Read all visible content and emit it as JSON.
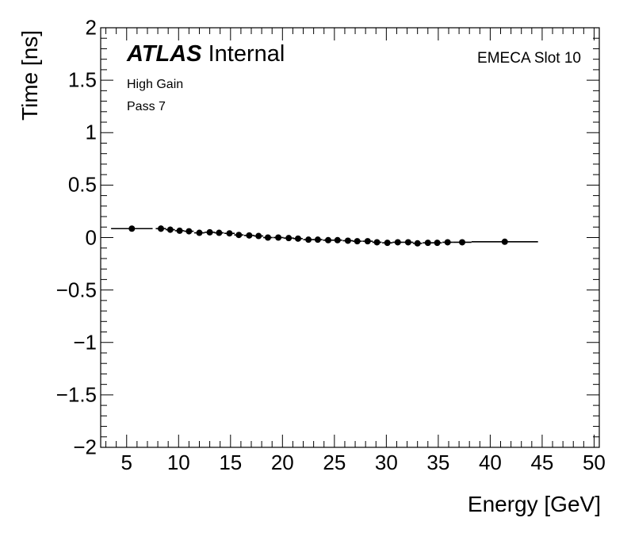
{
  "chart_data": {
    "type": "scatter",
    "xlabel": "Energy [GeV]",
    "ylabel": "Time [ns]",
    "xlim": [
      2.5,
      50.5
    ],
    "ylim": [
      -2,
      2
    ],
    "x_ticks": [
      5,
      10,
      15,
      20,
      25,
      30,
      35,
      40,
      45,
      50
    ],
    "x_tick_labels": [
      "5",
      "10",
      "15",
      "20",
      "25",
      "30",
      "35",
      "40",
      "45",
      "50"
    ],
    "y_ticks": [
      -2,
      -1.5,
      -1,
      -0.5,
      0,
      0.5,
      1,
      1.5,
      2
    ],
    "y_tick_labels": [
      "−2",
      "−1.5",
      "−1",
      "−0.5",
      "0",
      "0.5",
      "1",
      "1.5",
      "2"
    ],
    "grid": false,
    "annotations": {
      "atlas": "ATLAS",
      "internal": "Internal",
      "slot": "EMECA Slot 10",
      "gain": "High Gain",
      "pass": "Pass 7"
    },
    "series": [
      {
        "x": [
          5.5,
          8.3,
          9.2,
          10.1,
          11.0,
          12.0,
          13.0,
          13.9,
          14.9,
          15.8,
          16.8,
          17.7,
          18.6,
          19.6,
          20.6,
          21.5,
          22.5,
          23.4,
          24.4,
          25.3,
          26.3,
          27.2,
          28.2,
          29.1,
          30.1,
          31.1,
          32.1,
          33.0,
          34.0,
          34.9,
          35.9,
          37.3,
          41.4
        ],
        "y": [
          0.085,
          0.085,
          0.075,
          0.065,
          0.06,
          0.045,
          0.05,
          0.045,
          0.04,
          0.025,
          0.02,
          0.015,
          0.0,
          0.0,
          -0.005,
          -0.01,
          -0.02,
          -0.02,
          -0.025,
          -0.025,
          -0.03,
          -0.035,
          -0.035,
          -0.045,
          -0.05,
          -0.045,
          -0.045,
          -0.055,
          -0.05,
          -0.05,
          -0.045,
          -0.045,
          -0.04
        ],
        "yerr": [
          0.02,
          0.03,
          0.03,
          0.025,
          0.025,
          0.02,
          0.02,
          0.02,
          0.02,
          0.015,
          0.015,
          0.015,
          0.012,
          0.012,
          0.012,
          0.012,
          0.012,
          0.012,
          0.012,
          0.012,
          0.012,
          0.012,
          0.012,
          0.012,
          0.012,
          0.012,
          0.012,
          0.012,
          0.012,
          0.012,
          0.012,
          0.012,
          0.012
        ],
        "xerr": [
          2.0,
          0.5,
          0.45,
          0.45,
          0.45,
          0.5,
          0.5,
          0.45,
          0.5,
          0.45,
          0.5,
          0.45,
          0.45,
          0.5,
          0.5,
          0.45,
          0.5,
          0.45,
          0.5,
          0.45,
          0.5,
          0.45,
          0.5,
          0.45,
          0.5,
          0.5,
          0.5,
          0.45,
          0.5,
          0.45,
          0.5,
          0.9,
          3.2
        ]
      }
    ]
  }
}
